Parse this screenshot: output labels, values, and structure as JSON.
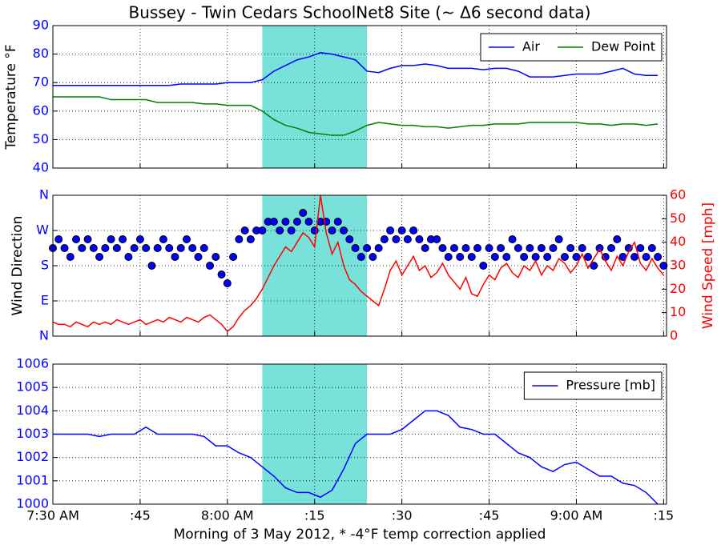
{
  "chart_data": [
    {
      "type": "line",
      "title": "Bussey - Twin Cedars SchoolNet8 Site (~ Δ6 second data)",
      "ylabel": "Temperature °F",
      "xlim": [
        450,
        555.5
      ],
      "ylim": [
        40,
        90
      ],
      "yticks": [
        40,
        50,
        60,
        70,
        80,
        90
      ],
      "tick_color": "#0000ff",
      "grid": true,
      "legend": "upper right",
      "highlight": [
        486,
        504
      ],
      "highlight_color": "#78e1da",
      "x": [
        450,
        452,
        454,
        456,
        458,
        460,
        462,
        464,
        466,
        468,
        470,
        472,
        474,
        476,
        478,
        480,
        482,
        484,
        486,
        488,
        490,
        492,
        494,
        496,
        498,
        500,
        502,
        504,
        506,
        508,
        510,
        512,
        514,
        516,
        518,
        520,
        522,
        524,
        526,
        528,
        530,
        532,
        534,
        536,
        538,
        540,
        542,
        544,
        546,
        548,
        550,
        552,
        554
      ],
      "series": [
        {
          "name": "Air",
          "color": "#0000ff",
          "values": [
            69,
            69,
            69,
            69,
            69,
            69,
            69,
            69,
            69,
            69,
            69,
            69.5,
            69.5,
            69.5,
            69.5,
            70,
            70,
            70,
            71,
            74,
            76,
            78,
            79,
            80.5,
            80,
            79,
            78,
            74,
            73.5,
            75,
            76,
            76,
            76.5,
            76,
            75,
            75,
            75,
            74.5,
            75,
            75,
            74,
            72,
            72,
            72,
            72.5,
            73,
            73,
            73,
            74,
            75,
            73,
            72.5,
            72.5
          ]
        },
        {
          "name": "Dew Point",
          "color": "#008000",
          "values": [
            65,
            65,
            65,
            65,
            65,
            64,
            64,
            64,
            64,
            63,
            63,
            63,
            63,
            62.5,
            62.5,
            62,
            62,
            62,
            60,
            57,
            55,
            54,
            52.5,
            52,
            51.5,
            51.5,
            53,
            55,
            56,
            55.5,
            55,
            55,
            54.5,
            54.5,
            54,
            54.5,
            55,
            55,
            55.5,
            55.5,
            55.5,
            56,
            56,
            56,
            56,
            56,
            55.5,
            55.5,
            55,
            55.5,
            55.5,
            55,
            55.5
          ]
        }
      ]
    },
    {
      "type": "scatter",
      "ylabel": "Wind Direction",
      "y2label": "Wind Speed [mph]",
      "xlim": [
        450,
        555.5
      ],
      "ylim": [
        0,
        360
      ],
      "yticks": [
        {
          "value": 0,
          "label": "N"
        },
        {
          "value": 90,
          "label": "E"
        },
        {
          "value": 180,
          "label": "S"
        },
        {
          "value": 270,
          "label": "W"
        },
        {
          "value": 360,
          "label": "N"
        }
      ],
      "y2lim": [
        0,
        60
      ],
      "y2ticks": [
        0,
        10,
        20,
        30,
        40,
        50,
        60
      ],
      "tick_color": "#0000ff",
      "tick2_color": "#ff0000",
      "grid": true,
      "highlight": [
        486,
        504
      ],
      "highlight_color": "#78e1da",
      "x": [
        450,
        451,
        452,
        453,
        454,
        455,
        456,
        457,
        458,
        459,
        460,
        461,
        462,
        463,
        464,
        465,
        466,
        467,
        468,
        469,
        470,
        471,
        472,
        473,
        474,
        475,
        476,
        477,
        478,
        479,
        480,
        481,
        482,
        483,
        484,
        485,
        486,
        487,
        488,
        489,
        490,
        491,
        492,
        493,
        494,
        495,
        496,
        497,
        498,
        499,
        500,
        501,
        502,
        503,
        504,
        505,
        506,
        507,
        508,
        509,
        510,
        511,
        512,
        513,
        514,
        515,
        516,
        517,
        518,
        519,
        520,
        521,
        522,
        523,
        524,
        525,
        526,
        527,
        528,
        529,
        530,
        531,
        532,
        533,
        534,
        535,
        536,
        537,
        538,
        539,
        540,
        541,
        542,
        543,
        544,
        545,
        546,
        547,
        548,
        549,
        550,
        551,
        552,
        553,
        554,
        555
      ],
      "series": [
        {
          "style": "markers",
          "color": "#0000ff",
          "values": [
            225,
            247.5,
            225,
            202.5,
            247.5,
            225,
            247.5,
            225,
            202.5,
            225,
            247.5,
            225,
            247.5,
            202.5,
            225,
            247.5,
            225,
            180,
            225,
            247.5,
            225,
            202.5,
            225,
            247.5,
            225,
            202.5,
            225,
            180,
            202.5,
            157.5,
            135,
            202.5,
            247.5,
            270,
            247.5,
            270,
            270,
            292.5,
            292.5,
            270,
            292.5,
            270,
            292.5,
            315,
            292.5,
            270,
            292.5,
            292.5,
            270,
            292.5,
            270,
            247.5,
            225,
            202.5,
            225,
            202.5,
            225,
            247.5,
            270,
            247.5,
            270,
            247.5,
            270,
            247.5,
            225,
            247.5,
            247.5,
            225,
            202.5,
            225,
            202.5,
            225,
            202.5,
            225,
            180,
            225,
            202.5,
            225,
            202.5,
            247.5,
            225,
            202.5,
            225,
            202.5,
            225,
            202.5,
            225,
            247.5,
            202.5,
            225,
            202.5,
            225,
            202.5,
            180,
            225,
            202.5,
            225,
            247.5,
            202.5,
            225,
            202.5,
            225,
            202.5,
            225,
            202.5,
            180
          ]
        },
        {
          "style": "line",
          "axis": "y2",
          "color": "#ff0000",
          "values": [
            6,
            5,
            5,
            4,
            6,
            5,
            4,
            6,
            5,
            6,
            5,
            7,
            6,
            5,
            6,
            7,
            5,
            6,
            7,
            6,
            8,
            7,
            6,
            8,
            7,
            6,
            8,
            9,
            7,
            5,
            2,
            4,
            8,
            11,
            13,
            16,
            20,
            25,
            30,
            34,
            38,
            36,
            40,
            44,
            42,
            38,
            60,
            44,
            35,
            40,
            30,
            24,
            22,
            19,
            17,
            15,
            13,
            20,
            28,
            32,
            26,
            30,
            34,
            28,
            30,
            25,
            27,
            31,
            26,
            23,
            20,
            25,
            18,
            17,
            22,
            26,
            24,
            29,
            31,
            27,
            25,
            30,
            28,
            32,
            26,
            30,
            28,
            33,
            31,
            27,
            30,
            35,
            29,
            33,
            37,
            32,
            28,
            34,
            30,
            36,
            40,
            31,
            28,
            33,
            29,
            26
          ]
        }
      ]
    },
    {
      "type": "line",
      "xlabel": "Morning of 3 May 2012, * -4°F temp correction applied",
      "xlim": [
        450,
        555.5
      ],
      "xticks": [
        {
          "value": 450,
          "label": "7:30 AM"
        },
        {
          "value": 465,
          "label": ":45"
        },
        {
          "value": 480,
          "label": "8:00 AM"
        },
        {
          "value": 495,
          "label": ":15"
        },
        {
          "value": 510,
          "label": ":30"
        },
        {
          "value": 525,
          "label": ":45"
        },
        {
          "value": 540,
          "label": "9:00 AM"
        },
        {
          "value": 555,
          "label": ":15"
        }
      ],
      "ylim": [
        1000,
        1006
      ],
      "yticks": [
        1000,
        1001,
        1002,
        1003,
        1004,
        1005,
        1006
      ],
      "tick_color": "#0000ff",
      "grid": true,
      "legend": "upper right",
      "highlight": [
        486,
        504
      ],
      "highlight_color": "#78e1da",
      "x": [
        450,
        452,
        454,
        456,
        458,
        460,
        462,
        464,
        466,
        468,
        470,
        472,
        474,
        476,
        478,
        480,
        482,
        484,
        486,
        488,
        490,
        492,
        494,
        496,
        498,
        500,
        502,
        504,
        506,
        508,
        510,
        512,
        514,
        516,
        518,
        520,
        522,
        524,
        526,
        528,
        530,
        532,
        534,
        536,
        538,
        540,
        542,
        544,
        546,
        548,
        550,
        552,
        554
      ],
      "series": [
        {
          "name": "Pressure [mb]",
          "color": "#0000ff",
          "values": [
            1003,
            1003,
            1003,
            1003,
            1002.9,
            1003,
            1003,
            1003,
            1003.3,
            1003,
            1003,
            1003,
            1003,
            1002.9,
            1002.5,
            1002.5,
            1002.2,
            1002,
            1001.6,
            1001.2,
            1000.7,
            1000.5,
            1000.5,
            1000.3,
            1000.6,
            1001.5,
            1002.6,
            1003,
            1003,
            1003,
            1003.2,
            1003.6,
            1004,
            1004,
            1003.8,
            1003.3,
            1003.2,
            1003,
            1003,
            1002.6,
            1002.2,
            1002,
            1001.6,
            1001.4,
            1001.7,
            1001.8,
            1001.5,
            1001.2,
            1001.2,
            1000.9,
            1000.8,
            1000.5,
            1000
          ]
        }
      ]
    }
  ]
}
